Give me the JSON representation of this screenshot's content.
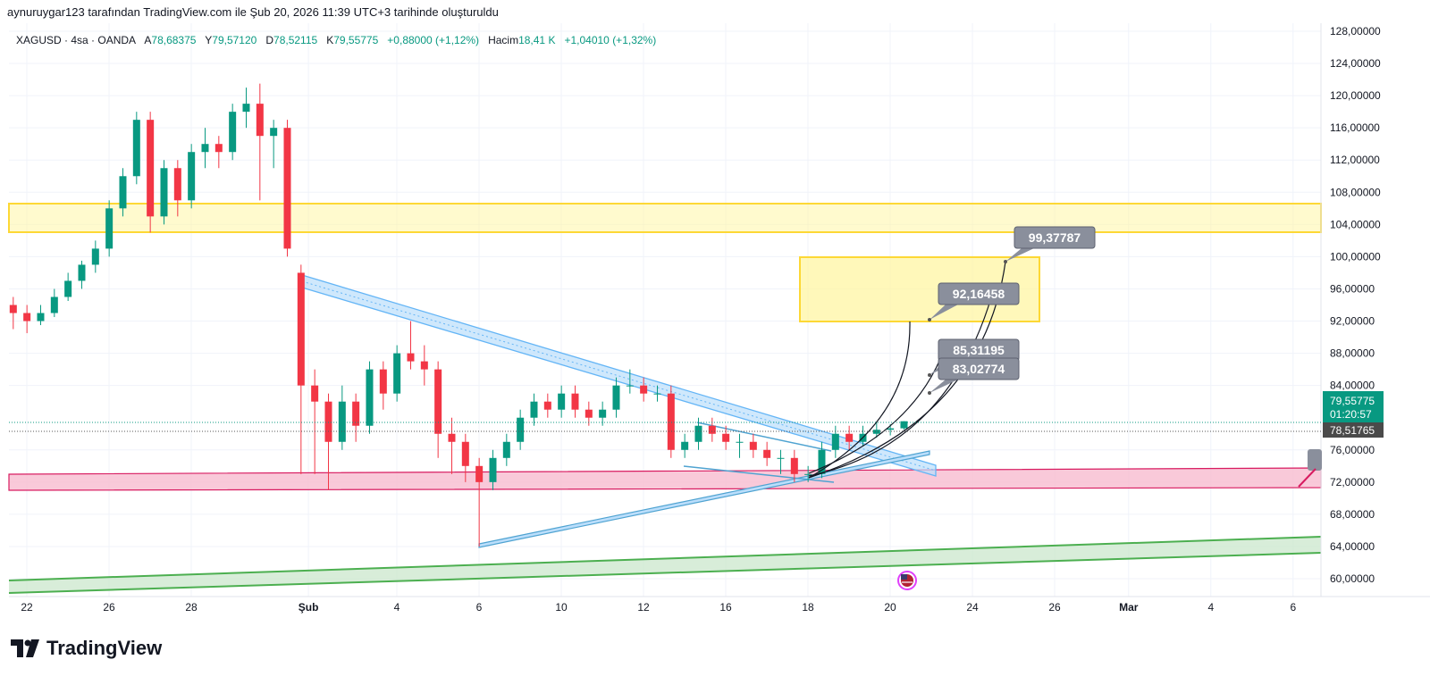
{
  "attribution": "aynuruygar123 tarafından TradingView.com ile Şub 20, 2026 11:39 UTC+3 tarihinde oluşturuldu",
  "legend": {
    "symbol": "XAGUSD · 4sa · OANDA",
    "open_label": "A",
    "open": "78,68375",
    "high_label": "Y",
    "high": "79,57120",
    "low_label": "D",
    "low": "78,52115",
    "close_label": "K",
    "close": "79,55775",
    "change": "+0,88000 (+1,12%)",
    "volume_label": "Hacim",
    "volume": "18,41 K",
    "volume_change": "+1,04010 (+1,32%)"
  },
  "colors": {
    "up": "#089981",
    "down": "#f23645",
    "yellow_zone": "#fff59d",
    "pink_zone": "#f8bbd0",
    "green_zone": "#c8e6c9",
    "channel": "#90caf9"
  },
  "chart_data": {
    "type": "candlestick",
    "timeframe": "4sa",
    "ylim": [
      58,
      129
    ],
    "price_ticks": [
      "128,00000",
      "124,00000",
      "120,00000",
      "116,00000",
      "112,00000",
      "108,00000",
      "104,00000",
      "100,00000",
      "96,00000",
      "92,00000",
      "88,00000",
      "84,00000",
      "76,00000",
      "72,00000",
      "68,00000",
      "64,00000",
      "60,00000"
    ],
    "price_tick_values": [
      128,
      124,
      120,
      116,
      112,
      108,
      104,
      100,
      96,
      92,
      88,
      84,
      76,
      72,
      68,
      64,
      60
    ],
    "date_ticks": [
      {
        "label": "22",
        "t": 0
      },
      {
        "label": "26",
        "t": 2
      },
      {
        "label": "28",
        "t": 4
      },
      {
        "label": "Şub",
        "t": 6.85
      },
      {
        "label": "4",
        "t": 9
      },
      {
        "label": "6",
        "t": 11
      },
      {
        "label": "10",
        "t": 13
      },
      {
        "label": "12",
        "t": 15
      },
      {
        "label": "16",
        "t": 17
      },
      {
        "label": "18",
        "t": 19
      },
      {
        "label": "20",
        "t": 21
      },
      {
        "label": "24",
        "t": 23
      },
      {
        "label": "26",
        "t": 25
      },
      {
        "label": "Mar",
        "t": 26.8
      },
      {
        "label": "4",
        "t": 28.8
      },
      {
        "label": "6",
        "t": 30.8
      }
    ],
    "candles_ohlc": [
      [
        94,
        95,
        91,
        93
      ],
      [
        93,
        94,
        90.5,
        92
      ],
      [
        92,
        94,
        91.5,
        93
      ],
      [
        93,
        96,
        92.5,
        95
      ],
      [
        95,
        98,
        94.5,
        97
      ],
      [
        97,
        99.5,
        96,
        99
      ],
      [
        99,
        102,
        98,
        101
      ],
      [
        101,
        107,
        100,
        106
      ],
      [
        106,
        111,
        105,
        110
      ],
      [
        110,
        118,
        109,
        117
      ],
      [
        117,
        118,
        103,
        105
      ],
      [
        105,
        112,
        104,
        111
      ],
      [
        111,
        112,
        105,
        107
      ],
      [
        107,
        114,
        106,
        113
      ],
      [
        113,
        116,
        111,
        114
      ],
      [
        114,
        115,
        111,
        113
      ],
      [
        113,
        119,
        112,
        118
      ],
      [
        118,
        121,
        116,
        119
      ],
      [
        119,
        121.5,
        107,
        115
      ],
      [
        115,
        117,
        111,
        116
      ],
      [
        116,
        117,
        100,
        101
      ],
      [
        98,
        99,
        73,
        84
      ],
      [
        84,
        86,
        73,
        82
      ],
      [
        82,
        83,
        71,
        77
      ],
      [
        77,
        84,
        76,
        82
      ],
      [
        82,
        83,
        77,
        79
      ],
      [
        79,
        87,
        78,
        86
      ],
      [
        86,
        87,
        81,
        83
      ],
      [
        83,
        89,
        82,
        88
      ],
      [
        88,
        92,
        86,
        87
      ],
      [
        87,
        89,
        84,
        86
      ],
      [
        86,
        87,
        75,
        78
      ],
      [
        78,
        80,
        73,
        77
      ],
      [
        77,
        78,
        72,
        74
      ],
      [
        74,
        75,
        64,
        72
      ],
      [
        72,
        76,
        71,
        75
      ],
      [
        75,
        78,
        74,
        77
      ],
      [
        77,
        81,
        76,
        80
      ],
      [
        80,
        83,
        79,
        82
      ],
      [
        82,
        83,
        80,
        81
      ],
      [
        81,
        84,
        80,
        83
      ],
      [
        83,
        84,
        80,
        81
      ],
      [
        81,
        82,
        79,
        80
      ],
      [
        80,
        82,
        79,
        81
      ],
      [
        81,
        85,
        80,
        84
      ],
      [
        84,
        86,
        83,
        84
      ],
      [
        84,
        85,
        82,
        83
      ],
      [
        83,
        84,
        82,
        83
      ],
      [
        83,
        84,
        75,
        76
      ],
      [
        76,
        78,
        75,
        77
      ],
      [
        77,
        80,
        76,
        79
      ],
      [
        79,
        80,
        77,
        78
      ],
      [
        78,
        79,
        76,
        77
      ],
      [
        77,
        78,
        75,
        77
      ],
      [
        77,
        78,
        75,
        76
      ],
      [
        76,
        77,
        74,
        75
      ],
      [
        75,
        76,
        73,
        75
      ],
      [
        75,
        76,
        72,
        73
      ],
      [
        73,
        74,
        72,
        73
      ],
      [
        73,
        77,
        72.5,
        76
      ],
      [
        76,
        79,
        75,
        78
      ],
      [
        78,
        79,
        76,
        77
      ],
      [
        77,
        79,
        76.5,
        78
      ],
      [
        78,
        79.5,
        77.5,
        78.5
      ],
      [
        78.5,
        79.2,
        77.8,
        78.68
      ],
      [
        78.68,
        79.57,
        78.52,
        79.56
      ]
    ],
    "last_price": "79,55775",
    "countdown": "01:20:57",
    "prev_price": "78,51765",
    "targets": [
      "99,37787",
      "92,16458",
      "85,31195",
      "83,02774"
    ],
    "zones": {
      "resistance": [
        103.2,
        106.6
      ],
      "target_box": [
        92,
        100
      ],
      "support": [
        71,
        73.2
      ]
    }
  },
  "branding": "TradingView"
}
